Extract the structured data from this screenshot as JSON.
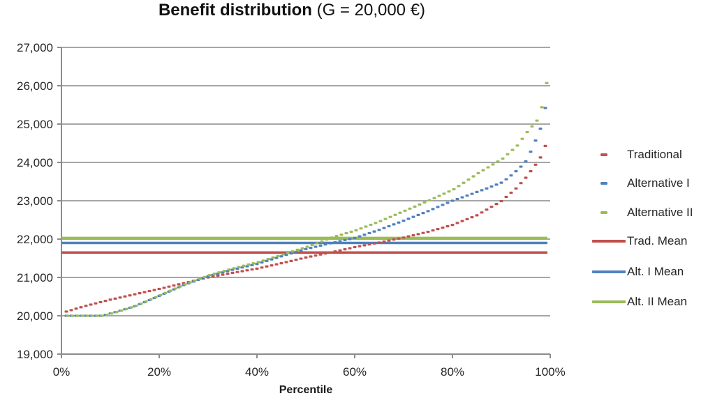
{
  "title": {
    "bold": "Benefit distribution",
    "regular": " (G = 20,000 €)"
  },
  "chart_data": {
    "type": "scatter",
    "title": "Benefit distribution (G = 20,000 €)",
    "xlabel": "Percentile",
    "ylabel": "",
    "xlim": [
      0,
      100
    ],
    "ylim": [
      19000,
      27000
    ],
    "grid": "horizontal",
    "legend_position": "right",
    "x_ticks": [
      "0%",
      "20%",
      "40%",
      "60%",
      "80%",
      "100%"
    ],
    "x_tick_values": [
      0,
      20,
      40,
      60,
      80,
      100
    ],
    "y_ticks": [
      "19,000",
      "20,000",
      "21,000",
      "22,000",
      "23,000",
      "24,000",
      "25,000",
      "26,000",
      "27,000"
    ],
    "y_tick_values": [
      19000,
      20000,
      21000,
      22000,
      23000,
      24000,
      25000,
      26000,
      27000
    ],
    "percentile_range": [
      1,
      99
    ],
    "percentile_step": 1,
    "series": [
      {
        "name": "Traditional",
        "type": "scatter",
        "marker": "dash",
        "color": "#C0504D",
        "values": [
          20110,
          20148,
          20186,
          20223,
          20260,
          20292,
          20324,
          20356,
          20388,
          20420,
          20448,
          20476,
          20504,
          20532,
          20560,
          20588,
          20616,
          20644,
          20672,
          20700,
          20730,
          20760,
          20790,
          20820,
          20850,
          20880,
          20910,
          20940,
          20970,
          21000,
          21024,
          21048,
          21072,
          21096,
          21120,
          21142,
          21164,
          21186,
          21208,
          21230,
          21258,
          21286,
          21314,
          21342,
          21370,
          21400,
          21430,
          21460,
          21490,
          21520,
          21546,
          21572,
          21598,
          21624,
          21650,
          21678,
          21706,
          21734,
          21762,
          21790,
          21814,
          21838,
          21862,
          21886,
          21910,
          21936,
          21962,
          21988,
          22014,
          22040,
          22070,
          22100,
          22130,
          22160,
          22190,
          22226,
          22262,
          22298,
          22334,
          22370,
          22420,
          22470,
          22520,
          22570,
          22620,
          22694,
          22768,
          22842,
          22916,
          22990,
          23100,
          23210,
          23320,
          23460,
          23600,
          23770,
          23940,
          24130,
          24430
        ]
      },
      {
        "name": "Alternative I",
        "type": "scatter",
        "marker": "dash",
        "color": "#4F81BD",
        "values": [
          20000,
          20000,
          20000,
          20000,
          20000,
          20000,
          20000,
          20000,
          20025,
          20060,
          20095,
          20132,
          20170,
          20210,
          20250,
          20302,
          20355,
          20410,
          20465,
          20520,
          20576,
          20632,
          20688,
          20744,
          20800,
          20846,
          20892,
          20938,
          20984,
          21030,
          21064,
          21098,
          21132,
          21166,
          21200,
          21230,
          21260,
          21290,
          21320,
          21350,
          21390,
          21430,
          21470,
          21510,
          21550,
          21588,
          21626,
          21664,
          21702,
          21740,
          21770,
          21800,
          21830,
          21860,
          21890,
          21918,
          21946,
          21974,
          22002,
          22030,
          22072,
          22114,
          22156,
          22198,
          22240,
          22288,
          22336,
          22384,
          22432,
          22480,
          22530,
          22580,
          22630,
          22680,
          22730,
          22784,
          22838,
          22892,
          22946,
          23000,
          23045,
          23090,
          23135,
          23180,
          23230,
          23275,
          23320,
          23370,
          23420,
          23470,
          23560,
          23660,
          23770,
          23890,
          24030,
          24280,
          24570,
          24880,
          25420
        ]
      },
      {
        "name": "Alternative II",
        "type": "scatter",
        "marker": "dash",
        "color": "#9BBB59",
        "values": [
          20000,
          20000,
          20000,
          20000,
          20000,
          20000,
          20000,
          20000,
          20025,
          20060,
          20098,
          20137,
          20177,
          20218,
          20260,
          20315,
          20370,
          20426,
          20483,
          20540,
          20596,
          20652,
          20708,
          20764,
          20820,
          20868,
          20916,
          20964,
          21012,
          21060,
          21096,
          21132,
          21168,
          21204,
          21240,
          21272,
          21304,
          21336,
          21368,
          21400,
          21440,
          21480,
          21520,
          21560,
          21600,
          21640,
          21680,
          21720,
          21760,
          21800,
          21845,
          21890,
          21940,
          21990,
          22040,
          22078,
          22116,
          22154,
          22192,
          22230,
          22278,
          22326,
          22374,
          22422,
          22470,
          22524,
          22578,
          22632,
          22686,
          22740,
          22794,
          22848,
          22902,
          22956,
          23010,
          23068,
          23126,
          23184,
          23242,
          23300,
          23384,
          23468,
          23552,
          23636,
          23720,
          23796,
          23872,
          23948,
          24024,
          24100,
          24213,
          24326,
          24440,
          24615,
          24790,
          24940,
          25090,
          25440,
          26070
        ]
      },
      {
        "name": "Trad. Mean",
        "type": "hline",
        "color": "#C0504D",
        "value": 21650
      },
      {
        "name": "Alt. I Mean",
        "type": "hline",
        "color": "#4F81BD",
        "value": 21900
      },
      {
        "name": "Alt. II Mean",
        "type": "hline",
        "color": "#9BBB59",
        "value": 22030
      }
    ]
  },
  "colors": {
    "traditional": "#C0504D",
    "alternative1": "#4F81BD",
    "alternative2": "#9BBB59",
    "gridline": "#A6A6A6",
    "axis": "#8C8C8C",
    "text": "#262626"
  }
}
